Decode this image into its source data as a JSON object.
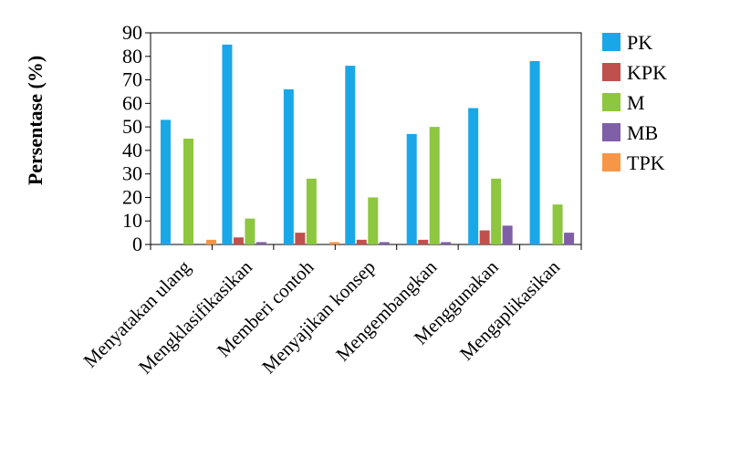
{
  "chart_data": {
    "type": "bar",
    "ylabel": "Persentase (%)",
    "xlabel": "",
    "ylim": [
      0,
      90
    ],
    "yticks": [
      0,
      10,
      20,
      30,
      40,
      50,
      60,
      70,
      80,
      90
    ],
    "legend_position": "right",
    "categories": [
      "Menyatakan ulang",
      "Mengklasifikasikan",
      "Memberi contoh",
      "Menyajikan konsep",
      "Mengembangkan",
      "Menggunakan",
      "Mengaplikasikan"
    ],
    "series": [
      {
        "name": "PK",
        "color": "#1aa7e8",
        "values": [
          53,
          85,
          66,
          76,
          47,
          58,
          78
        ]
      },
      {
        "name": "KPK",
        "color": "#c0504d",
        "values": [
          0,
          3,
          5,
          2,
          2,
          6,
          0
        ]
      },
      {
        "name": "M",
        "color": "#8dc63f",
        "values": [
          45,
          11,
          28,
          20,
          50,
          28,
          17
        ]
      },
      {
        "name": "MB",
        "color": "#7f5fa8",
        "values": [
          0,
          1,
          0,
          1,
          1,
          8,
          5
        ]
      },
      {
        "name": "TPK",
        "color": "#f79646",
        "values": [
          2,
          0,
          1,
          0,
          0,
          0,
          0
        ]
      }
    ]
  }
}
